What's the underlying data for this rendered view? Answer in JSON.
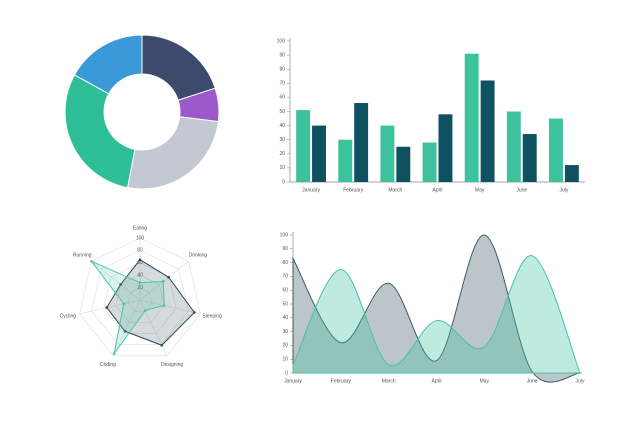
{
  "chart_data": [
    {
      "type": "doughnut",
      "values": [
        20,
        7,
        26,
        30,
        17
      ],
      "colors": [
        "#3d4a6b",
        "#9b59c9",
        "#c3c8d2",
        "#2fbf98",
        "#3a9ad9"
      ]
    },
    {
      "type": "bar",
      "categories": [
        "January",
        "February",
        "March",
        "April",
        "May",
        "June",
        "July"
      ],
      "series": [
        {
          "color": "#3cc29d",
          "values": [
            51,
            30,
            40,
            28,
            91,
            50,
            45
          ]
        },
        {
          "color": "#0e5160",
          "values": [
            40,
            56,
            25,
            48,
            72,
            34,
            12
          ]
        }
      ],
      "ylim": [
        0,
        100
      ],
      "yticks": [
        0,
        10,
        20,
        30,
        40,
        50,
        60,
        70,
        80,
        90,
        100
      ]
    },
    {
      "type": "radar",
      "categories": [
        "Eating",
        "Drinking",
        "Sleeping",
        "Designing",
        "Coding",
        "Cycling",
        "Running"
      ],
      "rlim": [
        0,
        100
      ],
      "rticks": [
        20,
        40,
        60,
        80,
        100
      ],
      "series": [
        {
          "color": "#2e4652",
          "values": [
            65,
            59,
            90,
            81,
            56,
            55,
            40
          ]
        },
        {
          "color": "#4cc4a4",
          "values": [
            28,
            48,
            40,
            19,
            96,
            27,
            100
          ]
        }
      ]
    },
    {
      "type": "area",
      "categories": [
        "January",
        "February",
        "March",
        "April",
        "May",
        "June",
        "July"
      ],
      "series": [
        {
          "color": "#3d5a66",
          "values": [
            83,
            22,
            65,
            9,
            100,
            1,
            0
          ]
        },
        {
          "color": "#48c3a2",
          "values": [
            6,
            75,
            6,
            38,
            19,
            85,
            0
          ]
        }
      ],
      "ylim": [
        0,
        100
      ],
      "yticks": [
        0,
        10,
        20,
        30,
        40,
        50,
        60,
        70,
        80,
        90,
        100
      ]
    }
  ]
}
